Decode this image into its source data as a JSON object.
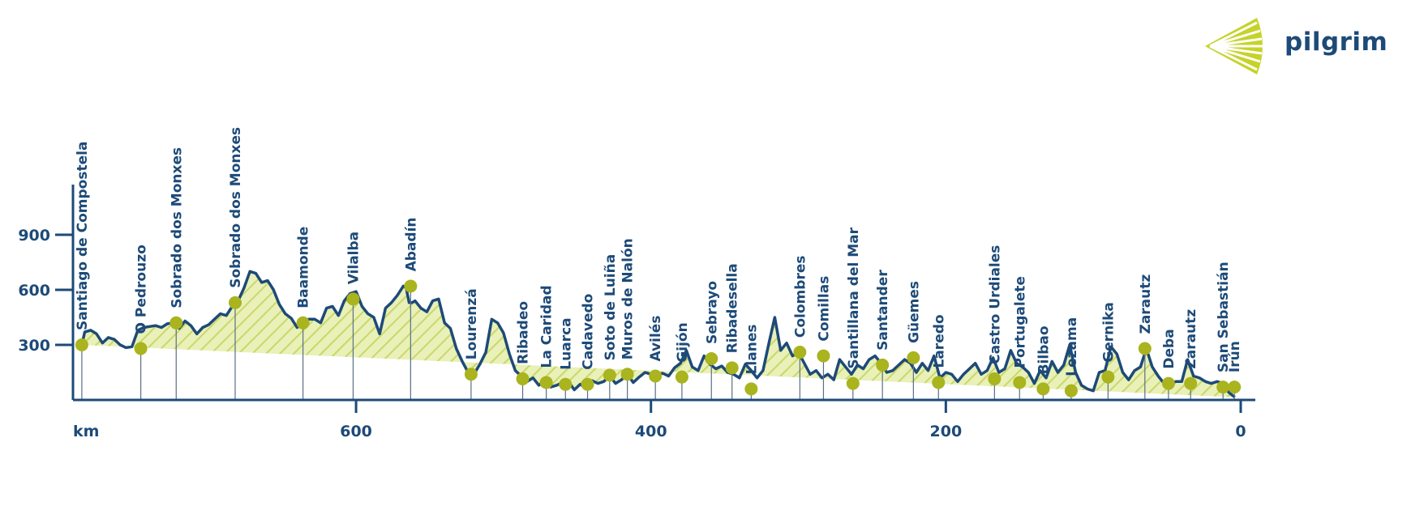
{
  "brand": {
    "name": "pilgrim"
  },
  "colors": {
    "line": "#1d4a78",
    "fill": "#e9f0b8",
    "hatch": "#c9d86a",
    "marker": "#a9b41e",
    "text": "#1d4a78"
  },
  "chart_data": {
    "type": "area",
    "x_label": "km",
    "x_axis_reversed": true,
    "xlim": [
      790,
      0
    ],
    "ylim": [
      0,
      1200
    ],
    "x_ticks": [
      {
        "value": 600,
        "label": "600"
      },
      {
        "value": 400,
        "label": "400"
      },
      {
        "value": 200,
        "label": "200"
      },
      {
        "value": 0,
        "label": "0"
      }
    ],
    "y_ticks": [
      {
        "value": 300,
        "label": "300"
      },
      {
        "value": 600,
        "label": "600"
      },
      {
        "value": 900,
        "label": "900"
      }
    ],
    "profile_km": [
      786,
      784,
      780,
      776,
      772,
      768,
      764,
      760,
      756,
      752,
      748,
      744,
      740,
      736,
      732,
      728,
      724,
      720,
      716,
      712,
      708,
      704,
      700,
      696,
      692,
      688,
      684,
      680,
      676,
      672,
      668,
      664,
      660,
      656,
      652,
      648,
      644,
      640,
      636,
      632,
      628,
      624,
      620,
      616,
      612,
      608,
      604,
      600,
      596,
      592,
      588,
      584,
      580,
      576,
      572,
      568,
      566,
      564,
      562,
      560,
      556,
      552,
      548,
      544,
      540,
      536,
      532,
      528,
      524,
      520,
      516,
      512,
      508,
      504,
      500,
      496,
      492,
      488,
      484,
      480,
      476,
      472,
      468,
      464,
      460,
      456,
      452,
      448,
      444,
      440,
      436,
      432,
      428,
      424,
      420,
      416,
      412,
      408,
      404,
      400,
      396,
      392,
      388,
      384,
      380,
      376,
      372,
      368,
      364,
      360,
      356,
      352,
      348,
      344,
      340,
      336,
      332,
      328,
      324,
      320,
      316,
      312,
      308,
      304,
      300,
      296,
      292,
      288,
      284,
      280,
      276,
      272,
      268,
      264,
      260,
      256,
      252,
      248,
      244,
      240,
      236,
      232,
      228,
      224,
      220,
      216,
      212,
      208,
      204,
      200,
      196,
      192,
      188,
      184,
      180,
      176,
      172,
      168,
      164,
      160,
      156,
      152,
      148,
      144,
      140,
      136,
      132,
      128,
      124,
      120,
      116,
      112,
      108,
      104,
      100,
      96,
      92,
      88,
      84,
      80,
      76,
      72,
      68,
      64,
      60,
      56,
      52,
      48,
      44,
      40,
      36,
      32,
      28,
      24,
      20,
      16,
      12,
      8,
      4,
      2,
      0
    ],
    "profile_elev": [
      300,
      370,
      380,
      360,
      310,
      340,
      330,
      300,
      285,
      290,
      380,
      395,
      400,
      405,
      395,
      415,
      420,
      390,
      430,
      405,
      360,
      395,
      410,
      440,
      470,
      460,
      510,
      540,
      610,
      700,
      690,
      640,
      650,
      600,
      520,
      470,
      445,
      395,
      420,
      440,
      440,
      420,
      500,
      510,
      460,
      540,
      580,
      590,
      510,
      470,
      450,
      360,
      500,
      530,
      570,
      620,
      610,
      530,
      530,
      540,
      500,
      480,
      540,
      550,
      420,
      390,
      280,
      210,
      150,
      140,
      195,
      260,
      440,
      420,
      365,
      250,
      160,
      130,
      100,
      120,
      80,
      105,
      70,
      80,
      95,
      100,
      55,
      85,
      65,
      105,
      90,
      100,
      130,
      90,
      110,
      140,
      95,
      125,
      150,
      140,
      135,
      145,
      130,
      175,
      200,
      270,
      180,
      160,
      240,
      195,
      170,
      185,
      150,
      140,
      120,
      195,
      160,
      120,
      160,
      310,
      450,
      270,
      310,
      240,
      260,
      200,
      140,
      160,
      120,
      140,
      110,
      220,
      180,
      140,
      190,
      170,
      220,
      240,
      200,
      150,
      160,
      190,
      220,
      200,
      150,
      200,
      160,
      240,
      120,
      150,
      140,
      100,
      140,
      170,
      200,
      140,
      160,
      230,
      150,
      170,
      270,
      200,
      180,
      150,
      90,
      160,
      120,
      210,
      150,
      190,
      300,
      150,
      80,
      60,
      50,
      150,
      160,
      290,
      250,
      150,
      110,
      160,
      180,
      280,
      180,
      130,
      90,
      90,
      100,
      100,
      220,
      130,
      120,
      100,
      90,
      100,
      90,
      40,
      15
    ],
    "waypoints": [
      {
        "name": "Santiago de Compostela",
        "km": 786,
        "elev": 300
      },
      {
        "name": "O Pedrouzo",
        "km": 746,
        "elev": 280
      },
      {
        "name": "Sobrado dos Monxes",
        "km": 722,
        "elev": 420
      },
      {
        "name": "Sobrado dos Monxes",
        "km": 682,
        "elev": 530
      },
      {
        "name": "Baamonde",
        "km": 636,
        "elev": 420
      },
      {
        "name": "Vilalba",
        "km": 602,
        "elev": 550
      },
      {
        "name": "Abadín",
        "km": 563,
        "elev": 620
      },
      {
        "name": "Lourenzá",
        "km": 522,
        "elev": 140
      },
      {
        "name": "Ribadeo",
        "km": 487,
        "elev": 115
      },
      {
        "name": "La Caridad",
        "km": 471,
        "elev": 95
      },
      {
        "name": "Luarca",
        "km": 458,
        "elev": 85
      },
      {
        "name": "Cadavedo",
        "km": 443,
        "elev": 85
      },
      {
        "name": "Soto de Luiña",
        "km": 428,
        "elev": 135
      },
      {
        "name": "Muros de Nalón",
        "km": 416,
        "elev": 140
      },
      {
        "name": "Avilés",
        "km": 397,
        "elev": 130
      },
      {
        "name": "Gijón",
        "km": 379,
        "elev": 125
      },
      {
        "name": "Sebrayo",
        "km": 359,
        "elev": 225
      },
      {
        "name": "Ribadesella",
        "km": 345,
        "elev": 175
      },
      {
        "name": "Llanes",
        "km": 332,
        "elev": 60
      },
      {
        "name": "Colombres",
        "km": 299,
        "elev": 260
      },
      {
        "name": "Comillas",
        "km": 283,
        "elev": 240
      },
      {
        "name": "Santillana del Mar",
        "km": 263,
        "elev": 90
      },
      {
        "name": "Santander",
        "km": 243,
        "elev": 190
      },
      {
        "name": "Güemes",
        "km": 222,
        "elev": 230
      },
      {
        "name": "Laredo",
        "km": 205,
        "elev": 95
      },
      {
        "name": "Castro Urdiales",
        "km": 167,
        "elev": 115
      },
      {
        "name": "Portugalete",
        "km": 150,
        "elev": 95
      },
      {
        "name": "Bilbao",
        "km": 134,
        "elev": 60
      },
      {
        "name": "Lezama",
        "km": 115,
        "elev": 50
      },
      {
        "name": "Gernika",
        "km": 90,
        "elev": 125
      },
      {
        "name": "Zarautz",
        "km": 65,
        "elev": 280
      },
      {
        "name": "Deba",
        "km": 49,
        "elev": 90
      },
      {
        "name": "Zarautz",
        "km": 34,
        "elev": 90
      },
      {
        "name": "San Sebastián",
        "km": 12,
        "elev": 70
      },
      {
        "name": "Irún",
        "km": 12,
        "elev": 70
      }
    ]
  }
}
